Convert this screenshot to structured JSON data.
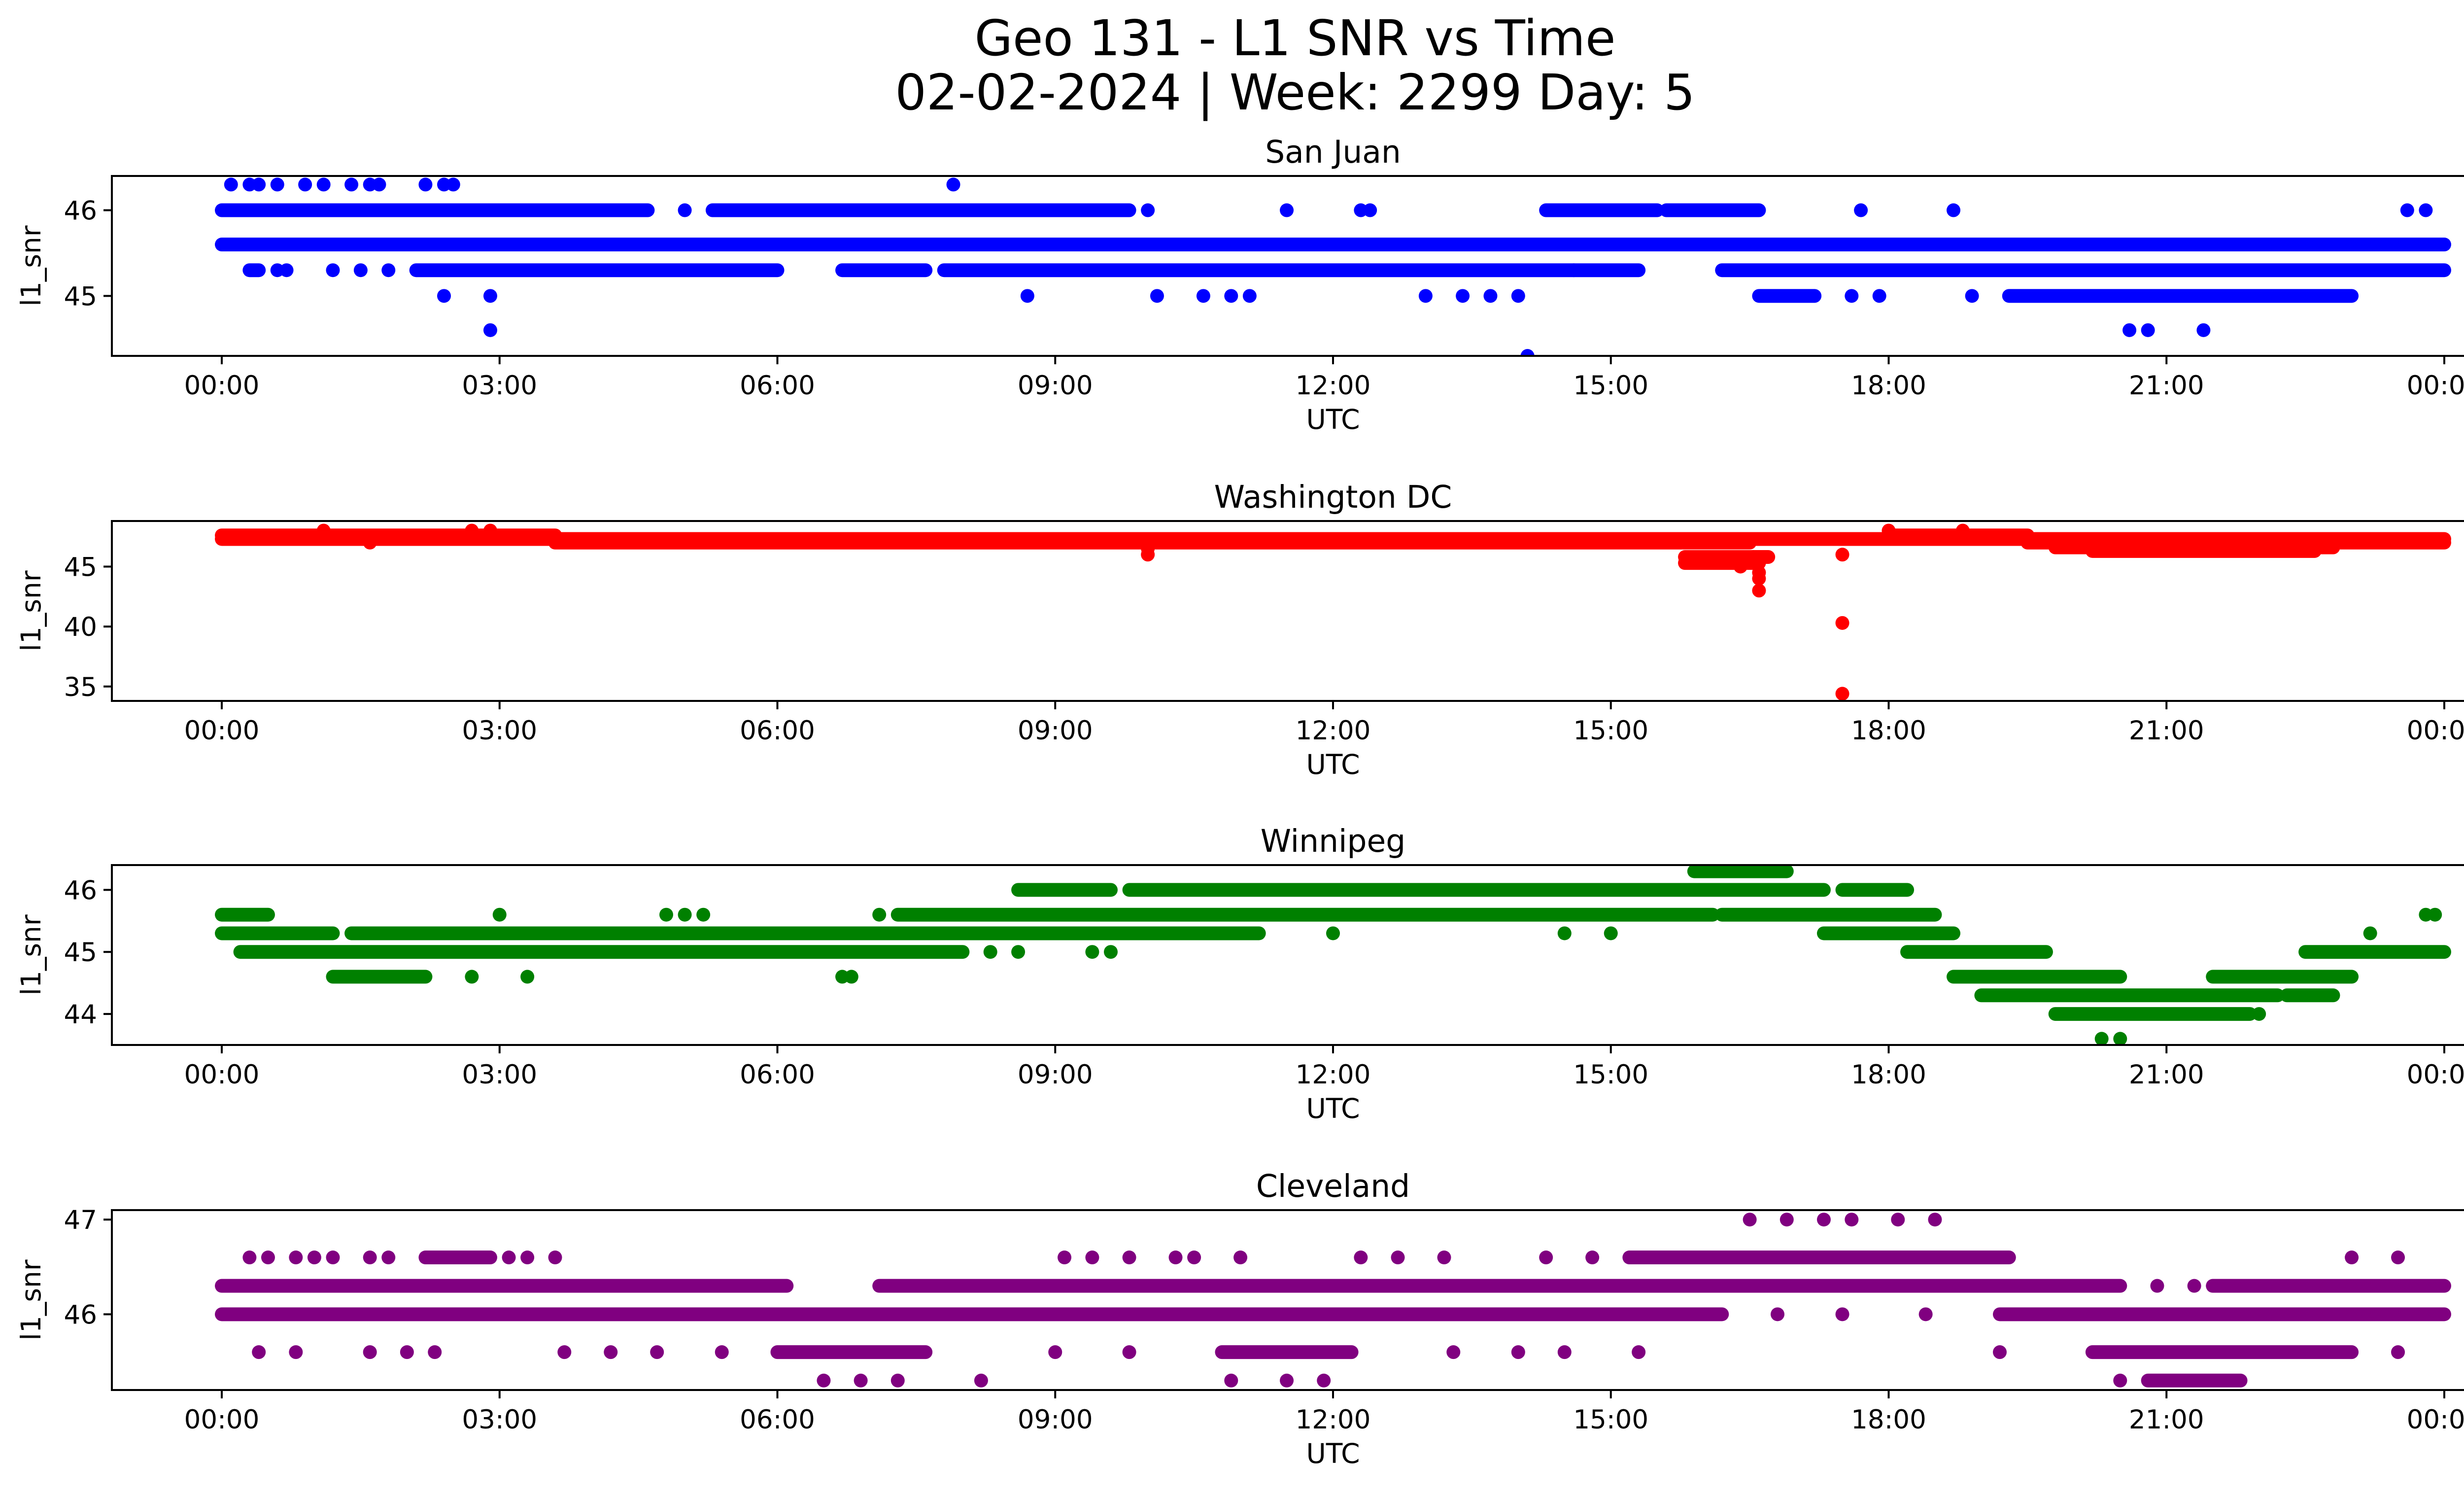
{
  "figure": {
    "title_line1": "Geo 131 - L1 SNR vs Time",
    "title_line2": "02-02-2024 | Week: 2299 Day: 5"
  },
  "chart_data": [
    {
      "type": "scatter",
      "title": "San Juan",
      "xlabel": "UTC",
      "ylabel": "l1_snr",
      "color": "#0000ff",
      "xlim": [
        0,
        24
      ],
      "x_unit": "hours",
      "x_ticks": [
        "00:00",
        "03:00",
        "06:00",
        "09:00",
        "12:00",
        "15:00",
        "18:00",
        "21:00",
        "00:00"
      ],
      "ylim": [
        44.3,
        46.4
      ],
      "y_ticks": [
        45,
        46
      ],
      "bands": [
        {
          "y": 46.0,
          "ranges": [
            [
              0,
              4.6
            ],
            [
              5.3,
              8.6
            ],
            [
              8.6,
              9.8
            ],
            [
              14.3,
              15.5
            ],
            [
              15.6,
              16.6
            ]
          ]
        },
        {
          "y": 45.6,
          "ranges": [
            [
              0,
              24
            ]
          ]
        },
        {
          "y": 45.3,
          "ranges": [
            [
              0.3,
              0.4
            ],
            [
              2.1,
              6.0
            ],
            [
              6.7,
              7.6
            ],
            [
              7.8,
              14.6
            ],
            [
              14.6,
              15.3
            ],
            [
              16.2,
              24
            ]
          ]
        },
        {
          "y": 45.0,
          "ranges": [
            [
              16.6,
              17.2
            ],
            [
              19.3,
              23.0
            ]
          ]
        }
      ],
      "points": [
        {
          "x": 0.1,
          "y": 46.3
        },
        {
          "x": 0.3,
          "y": 46.3
        },
        {
          "x": 0.4,
          "y": 46.3
        },
        {
          "x": 0.6,
          "y": 46.3
        },
        {
          "x": 0.9,
          "y": 46.3
        },
        {
          "x": 1.1,
          "y": 46.3
        },
        {
          "x": 1.4,
          "y": 46.3
        },
        {
          "x": 1.6,
          "y": 46.3
        },
        {
          "x": 1.7,
          "y": 46.3
        },
        {
          "x": 2.2,
          "y": 46.3
        },
        {
          "x": 2.4,
          "y": 46.3
        },
        {
          "x": 2.5,
          "y": 46.3
        },
        {
          "x": 7.9,
          "y": 46.3
        },
        {
          "x": 0.6,
          "y": 45.3
        },
        {
          "x": 0.7,
          "y": 45.3
        },
        {
          "x": 1.2,
          "y": 45.3
        },
        {
          "x": 1.5,
          "y": 45.3
        },
        {
          "x": 1.8,
          "y": 45.3
        },
        {
          "x": 2.4,
          "y": 45.0
        },
        {
          "x": 2.9,
          "y": 45.0
        },
        {
          "x": 2.9,
          "y": 44.6
        },
        {
          "x": 5.0,
          "y": 46.0
        },
        {
          "x": 10.0,
          "y": 46.0
        },
        {
          "x": 11.5,
          "y": 46.0
        },
        {
          "x": 12.3,
          "y": 46.0
        },
        {
          "x": 12.4,
          "y": 46.0
        },
        {
          "x": 17.7,
          "y": 46.0
        },
        {
          "x": 18.7,
          "y": 46.0
        },
        {
          "x": 23.6,
          "y": 46.0
        },
        {
          "x": 23.8,
          "y": 46.0
        },
        {
          "x": 8.7,
          "y": 45.0
        },
        {
          "x": 10.1,
          "y": 45.0
        },
        {
          "x": 10.6,
          "y": 45.0
        },
        {
          "x": 10.9,
          "y": 45.0
        },
        {
          "x": 11.1,
          "y": 45.0
        },
        {
          "x": 13.0,
          "y": 45.0
        },
        {
          "x": 13.4,
          "y": 45.0
        },
        {
          "x": 13.7,
          "y": 45.0
        },
        {
          "x": 14.0,
          "y": 45.0
        },
        {
          "x": 17.6,
          "y": 45.0
        },
        {
          "x": 17.9,
          "y": 45.0
        },
        {
          "x": 18.9,
          "y": 45.0
        },
        {
          "x": 14.1,
          "y": 44.3
        },
        {
          "x": 20.6,
          "y": 44.6
        },
        {
          "x": 20.8,
          "y": 44.6
        },
        {
          "x": 21.4,
          "y": 44.6
        }
      ]
    },
    {
      "type": "scatter",
      "title": "Washington DC",
      "xlabel": "UTC",
      "ylabel": "l1_snr",
      "color": "#ff0000",
      "xlim": [
        0,
        24
      ],
      "x_unit": "hours",
      "x_ticks": [
        "00:00",
        "03:00",
        "06:00",
        "09:00",
        "12:00",
        "15:00",
        "18:00",
        "21:00",
        "00:00"
      ],
      "ylim": [
        33.8,
        48.8
      ],
      "y_ticks": [
        35,
        40,
        45
      ],
      "bands": [
        {
          "y": 47.6,
          "ranges": [
            [
              0,
              3.6
            ],
            [
              18,
              19.5
            ]
          ]
        },
        {
          "y": 47.3,
          "ranges": [
            [
              0,
              24
            ]
          ]
        },
        {
          "y": 47.0,
          "ranges": [
            [
              3.6,
              16.5
            ],
            [
              19.5,
              24
            ]
          ]
        },
        {
          "y": 46.6,
          "ranges": [
            [
              19.8,
              22.8
            ]
          ]
        },
        {
          "y": 46.3,
          "ranges": [
            [
              20.2,
              22.6
            ]
          ]
        },
        {
          "y": 45.8,
          "ranges": [
            [
              15.8,
              16.7
            ]
          ]
        },
        {
          "y": 45.3,
          "ranges": [
            [
              15.8,
              16.6
            ]
          ]
        }
      ],
      "points": [
        {
          "x": 1.1,
          "y": 48.0
        },
        {
          "x": 2.7,
          "y": 48.0
        },
        {
          "x": 2.9,
          "y": 48.0
        },
        {
          "x": 18.0,
          "y": 48.0
        },
        {
          "x": 18.8,
          "y": 48.0
        },
        {
          "x": 1.6,
          "y": 47.0
        },
        {
          "x": 10.0,
          "y": 46.5
        },
        {
          "x": 10.0,
          "y": 46.0
        },
        {
          "x": 16.4,
          "y": 45.0
        },
        {
          "x": 16.6,
          "y": 44.5
        },
        {
          "x": 16.6,
          "y": 44.0
        },
        {
          "x": 16.6,
          "y": 43.0
        },
        {
          "x": 17.5,
          "y": 46.0
        },
        {
          "x": 17.5,
          "y": 40.3
        },
        {
          "x": 17.5,
          "y": 34.4
        }
      ]
    },
    {
      "type": "scatter",
      "title": "Winnipeg",
      "xlabel": "UTC",
      "ylabel": "l1_snr",
      "color": "#008000",
      "xlim": [
        0,
        24
      ],
      "x_unit": "hours",
      "x_ticks": [
        "00:00",
        "03:00",
        "06:00",
        "09:00",
        "12:00",
        "15:00",
        "18:00",
        "21:00",
        "00:00"
      ],
      "ylim": [
        43.5,
        46.4
      ],
      "y_ticks": [
        44,
        45,
        46
      ],
      "bands": [
        {
          "y": 46.3,
          "ranges": [
            [
              15.9,
              16.9
            ]
          ]
        },
        {
          "y": 46.0,
          "ranges": [
            [
              8.6,
              9.6
            ],
            [
              9.8,
              17.3
            ],
            [
              17.5,
              18.2
            ]
          ]
        },
        {
          "y": 45.6,
          "ranges": [
            [
              0.0,
              0.5
            ],
            [
              7.3,
              16.1
            ],
            [
              16.2,
              18.5
            ]
          ]
        },
        {
          "y": 45.3,
          "ranges": [
            [
              0,
              1.2
            ],
            [
              1.4,
              11.2
            ],
            [
              17.3,
              18.7
            ]
          ]
        },
        {
          "y": 45.0,
          "ranges": [
            [
              0.2,
              8.0
            ],
            [
              18.2,
              19.7
            ],
            [
              22.5,
              24
            ]
          ]
        },
        {
          "y": 44.6,
          "ranges": [
            [
              1.2,
              2.2
            ],
            [
              18.7,
              20.5
            ],
            [
              21.5,
              23.0
            ]
          ]
        },
        {
          "y": 44.3,
          "ranges": [
            [
              19.0,
              22.2
            ],
            [
              22.3,
              22.8
            ]
          ]
        },
        {
          "y": 44.0,
          "ranges": [
            [
              19.8,
              21.9
            ]
          ]
        }
      ],
      "points": [
        {
          "x": 3.0,
          "y": 45.6
        },
        {
          "x": 4.8,
          "y": 45.6
        },
        {
          "x": 5.0,
          "y": 45.6
        },
        {
          "x": 5.2,
          "y": 45.6
        },
        {
          "x": 7.1,
          "y": 45.6
        },
        {
          "x": 23.8,
          "y": 45.6
        },
        {
          "x": 23.9,
          "y": 45.6
        },
        {
          "x": 2.7,
          "y": 44.6
        },
        {
          "x": 3.3,
          "y": 44.6
        },
        {
          "x": 6.7,
          "y": 44.6
        },
        {
          "x": 6.8,
          "y": 44.6
        },
        {
          "x": 8.3,
          "y": 45.0
        },
        {
          "x": 8.6,
          "y": 45.0
        },
        {
          "x": 9.4,
          "y": 45.0
        },
        {
          "x": 9.6,
          "y": 45.0
        },
        {
          "x": 14.5,
          "y": 45.3
        },
        {
          "x": 15.0,
          "y": 45.3
        },
        {
          "x": 12.0,
          "y": 45.3
        },
        {
          "x": 20.3,
          "y": 43.6
        },
        {
          "x": 20.5,
          "y": 43.6
        },
        {
          "x": 22.0,
          "y": 44.0
        },
        {
          "x": 23.2,
          "y": 45.3
        }
      ]
    },
    {
      "type": "scatter",
      "title": "Cleveland",
      "xlabel": "UTC",
      "ylabel": "l1_snr",
      "color": "#800080",
      "xlim": [
        0,
        24
      ],
      "x_unit": "hours",
      "x_ticks": [
        "00:00",
        "03:00",
        "06:00",
        "09:00",
        "12:00",
        "15:00",
        "18:00",
        "21:00",
        "00:00"
      ],
      "ylim": [
        45.2,
        47.1
      ],
      "y_ticks": [
        46,
        47
      ],
      "bands": [
        {
          "y": 46.6,
          "ranges": [
            [
              2.2,
              2.9
            ],
            [
              15.2,
              19.3
            ]
          ]
        },
        {
          "y": 46.3,
          "ranges": [
            [
              0,
              6.1
            ],
            [
              7.1,
              20.5
            ],
            [
              21.5,
              24
            ]
          ]
        },
        {
          "y": 46.0,
          "ranges": [
            [
              0,
              16.2
            ],
            [
              19.2,
              24
            ]
          ]
        },
        {
          "y": 45.6,
          "ranges": [
            [
              6.0,
              7.6
            ],
            [
              10.8,
              12.2
            ],
            [
              20.2,
              23.0
            ]
          ]
        },
        {
          "y": 45.3,
          "ranges": [
            [
              20.8,
              21.8
            ]
          ]
        }
      ],
      "points": [
        {
          "x": 0.3,
          "y": 46.6
        },
        {
          "x": 0.5,
          "y": 46.6
        },
        {
          "x": 0.8,
          "y": 46.6
        },
        {
          "x": 1.0,
          "y": 46.6
        },
        {
          "x": 1.2,
          "y": 46.6
        },
        {
          "x": 1.6,
          "y": 46.6
        },
        {
          "x": 1.8,
          "y": 46.6
        },
        {
          "x": 3.1,
          "y": 46.6
        },
        {
          "x": 3.3,
          "y": 46.6
        },
        {
          "x": 3.6,
          "y": 46.6
        },
        {
          "x": 9.1,
          "y": 46.6
        },
        {
          "x": 9.4,
          "y": 46.6
        },
        {
          "x": 9.8,
          "y": 46.6
        },
        {
          "x": 10.3,
          "y": 46.6
        },
        {
          "x": 10.5,
          "y": 46.6
        },
        {
          "x": 11.0,
          "y": 46.6
        },
        {
          "x": 12.3,
          "y": 46.6
        },
        {
          "x": 12.7,
          "y": 46.6
        },
        {
          "x": 13.2,
          "y": 46.6
        },
        {
          "x": 14.3,
          "y": 46.6
        },
        {
          "x": 14.8,
          "y": 46.6
        },
        {
          "x": 23.0,
          "y": 46.6
        },
        {
          "x": 23.5,
          "y": 46.6
        },
        {
          "x": 16.5,
          "y": 47.0
        },
        {
          "x": 16.9,
          "y": 47.0
        },
        {
          "x": 17.3,
          "y": 47.0
        },
        {
          "x": 17.6,
          "y": 47.0
        },
        {
          "x": 18.1,
          "y": 47.0
        },
        {
          "x": 18.5,
          "y": 47.0
        },
        {
          "x": 0.4,
          "y": 45.6
        },
        {
          "x": 0.8,
          "y": 45.6
        },
        {
          "x": 1.6,
          "y": 45.6
        },
        {
          "x": 2.0,
          "y": 45.6
        },
        {
          "x": 2.3,
          "y": 45.6
        },
        {
          "x": 3.7,
          "y": 45.6
        },
        {
          "x": 4.2,
          "y": 45.6
        },
        {
          "x": 4.7,
          "y": 45.6
        },
        {
          "x": 5.4,
          "y": 45.6
        },
        {
          "x": 9.0,
          "y": 45.6
        },
        {
          "x": 9.8,
          "y": 45.6
        },
        {
          "x": 13.3,
          "y": 45.6
        },
        {
          "x": 14.0,
          "y": 45.6
        },
        {
          "x": 14.5,
          "y": 45.6
        },
        {
          "x": 15.3,
          "y": 45.6
        },
        {
          "x": 19.2,
          "y": 45.6
        },
        {
          "x": 23.5,
          "y": 45.6
        },
        {
          "x": 6.5,
          "y": 45.3
        },
        {
          "x": 6.9,
          "y": 45.3
        },
        {
          "x": 7.3,
          "y": 45.3
        },
        {
          "x": 8.2,
          "y": 45.3
        },
        {
          "x": 10.9,
          "y": 45.3
        },
        {
          "x": 11.5,
          "y": 45.3
        },
        {
          "x": 11.9,
          "y": 45.3
        },
        {
          "x": 20.5,
          "y": 45.3
        },
        {
          "x": 16.8,
          "y": 46.0
        },
        {
          "x": 17.5,
          "y": 46.0
        },
        {
          "x": 18.4,
          "y": 46.0
        },
        {
          "x": 20.9,
          "y": 46.3
        },
        {
          "x": 21.3,
          "y": 46.3
        }
      ]
    }
  ]
}
